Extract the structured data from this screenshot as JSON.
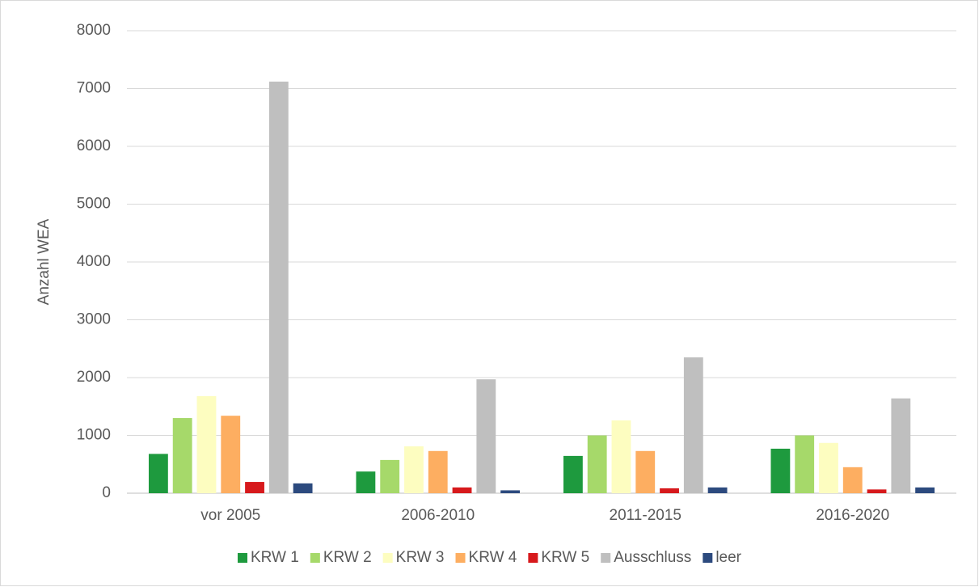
{
  "chart_data": {
    "type": "bar",
    "y_label": "Anzahl WEA",
    "categories": [
      "vor 2005",
      "2006-2010",
      "2011-2015",
      "2016-2020"
    ],
    "series": [
      {
        "name": "KRW 1",
        "color": "#1e9a3e",
        "values": [
          680,
          375,
          645,
          770
        ]
      },
      {
        "name": "KRW 2",
        "color": "#a6d96a",
        "values": [
          1300,
          575,
          1000,
          1000
        ]
      },
      {
        "name": "KRW 3",
        "color": "#fdfdc0",
        "values": [
          1680,
          810,
          1260,
          870
        ]
      },
      {
        "name": "KRW 4",
        "color": "#fdae61",
        "values": [
          1340,
          730,
          730,
          450
        ]
      },
      {
        "name": "KRW 5",
        "color": "#d7191c",
        "values": [
          195,
          100,
          85,
          65
        ]
      },
      {
        "name": "Ausschluss",
        "color": "#bfbfbf",
        "values": [
          7120,
          1970,
          2350,
          1640
        ]
      },
      {
        "name": "leer",
        "color": "#2c4a7e",
        "values": [
          170,
          50,
          100,
          100
        ]
      }
    ],
    "ylim": [
      0,
      8000
    ],
    "yticks": [
      0,
      1000,
      2000,
      3000,
      4000,
      5000,
      6000,
      7000,
      8000
    ],
    "grid": true,
    "legend": "bottom"
  }
}
